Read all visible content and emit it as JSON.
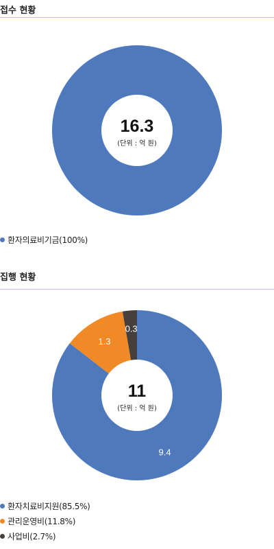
{
  "colors": {
    "blue": "#4f79bd",
    "orange": "#f08a26",
    "dark": "#45403c",
    "rule": "#f0c08a"
  },
  "chart_data": [
    {
      "type": "pie",
      "title": "접수 현황",
      "center_value": "16.3",
      "center_unit": "(단위 : 억 원)",
      "categories": [
        "환자의료비기금(100%)"
      ],
      "values": [
        16.3
      ],
      "slice_labels": [
        ""
      ],
      "colors": [
        "#4f79bd"
      ]
    },
    {
      "type": "pie",
      "title": "집행 현황",
      "center_value": "11",
      "center_unit": "(단위 : 억 원)",
      "categories": [
        "환자치료비지원(85.5%)",
        "관리운영비(11.8%)",
        "사업비(2.7%)"
      ],
      "values": [
        9.4,
        1.3,
        0.3
      ],
      "slice_labels": [
        "9.4",
        "1.3",
        "0.3"
      ],
      "colors": [
        "#4f79bd",
        "#f08a26",
        "#45403c"
      ]
    }
  ]
}
